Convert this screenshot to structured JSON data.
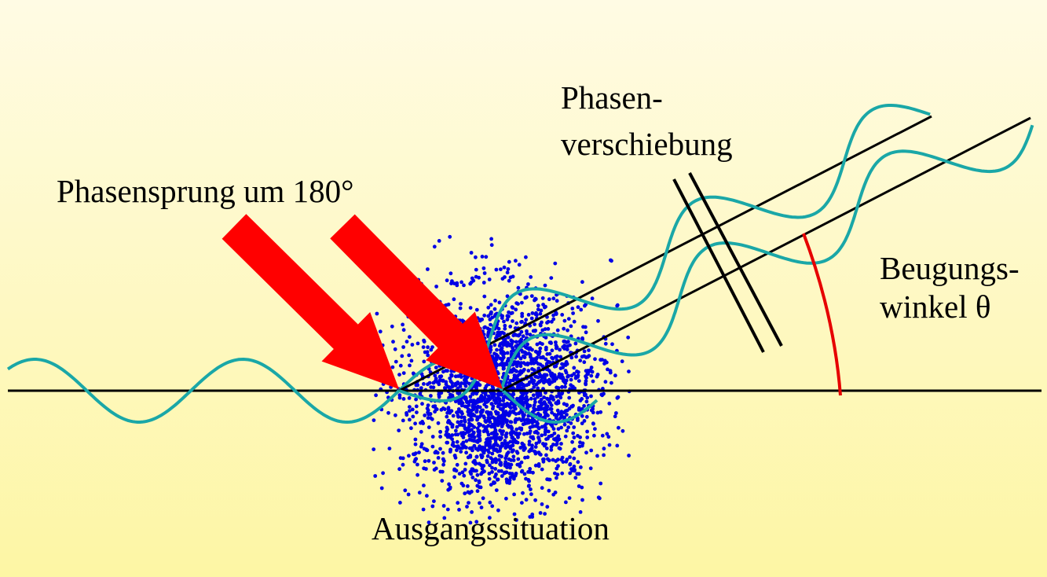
{
  "labels": {
    "phase_jump": "Phasensprung um 180°",
    "phase_shift_line1": "Phasen-",
    "phase_shift_line2": "verschiebung",
    "diffraction_angle_line1": "Beugungs-",
    "diffraction_angle_line2": "winkel θ",
    "initial_situation": "Ausgangssituation"
  },
  "colors": {
    "background_top": "#fffbe4",
    "background_bottom": "#fdf6a4",
    "wave": "#1aa7a7",
    "scatter_dots": "#0000e6",
    "arrow": "#ff0000",
    "angle_arc": "#e60000",
    "lines": "#000000"
  }
}
